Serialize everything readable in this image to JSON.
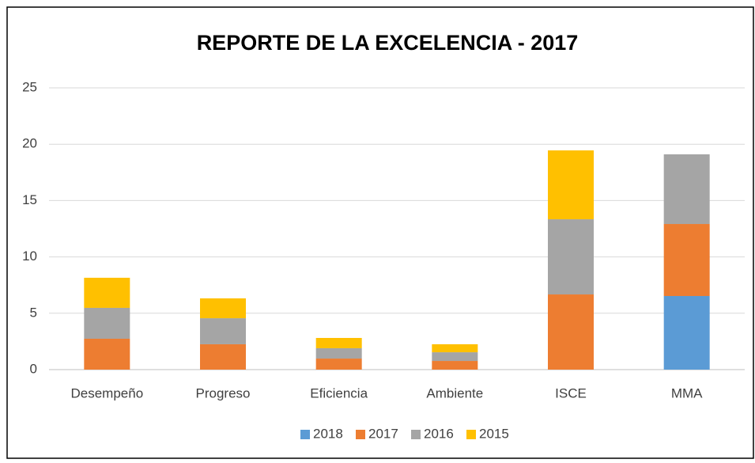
{
  "chart_data": {
    "type": "stacked_bar",
    "title": "REPORTE DE LA EXCELENCIA  - 2017",
    "categories": [
      "Desempeño",
      "Progreso",
      "Eficiencia",
      "Ambiente",
      "ISCE",
      "MMA"
    ],
    "series": [
      {
        "name": "2018",
        "color": "#5b9bd5",
        "values": [
          0,
          0,
          0,
          0,
          0,
          6.53
        ]
      },
      {
        "name": "2017",
        "color": "#ed7d31",
        "values": [
          2.74,
          2.25,
          0.98,
          0.77,
          6.67,
          6.39
        ]
      },
      {
        "name": "2016",
        "color": "#a5a5a5",
        "values": [
          2.74,
          2.31,
          0.92,
          0.77,
          6.67,
          6.18
        ]
      },
      {
        "name": "2015",
        "color": "#ffc000",
        "values": [
          2.67,
          1.76,
          0.91,
          0.71,
          6.11,
          0
        ]
      }
    ],
    "ylim": [
      0,
      25
    ],
    "yticks": [
      0,
      5,
      10,
      15,
      20,
      25
    ],
    "grid": true,
    "legend": "bottom"
  }
}
